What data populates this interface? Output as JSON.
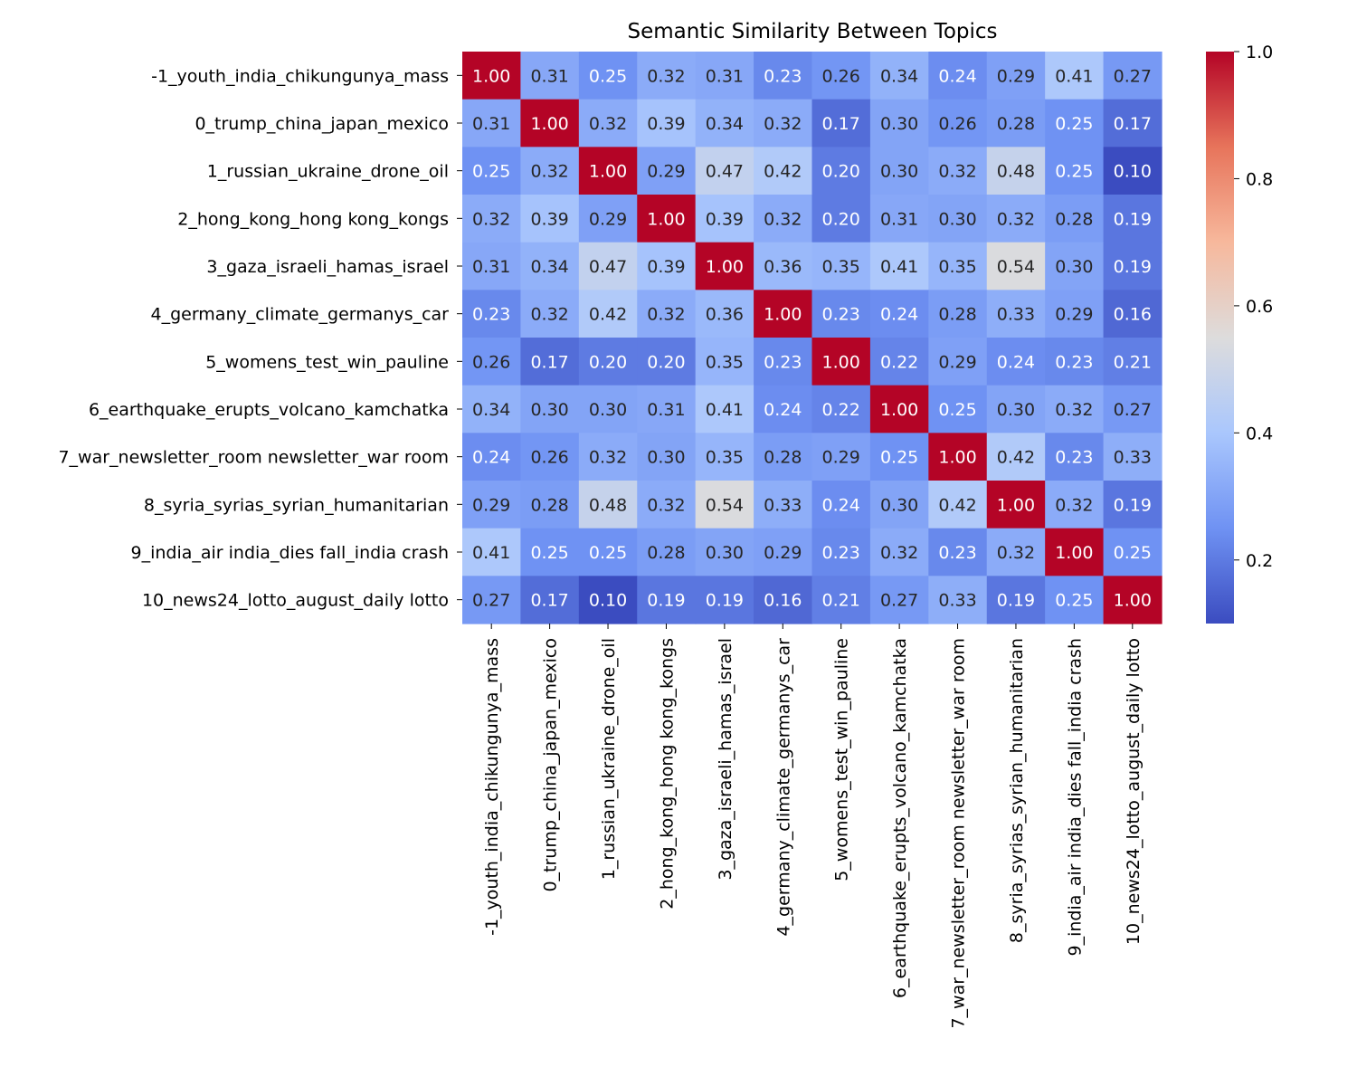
{
  "chart_data": {
    "type": "heatmap",
    "title": "Semantic Similarity Between Topics",
    "xlabel": "",
    "ylabel": "",
    "labels": [
      "-1_youth_india_chikungunya_mass",
      "0_trump_china_japan_mexico",
      "1_russian_ukraine_drone_oil",
      "2_hong_kong_hong kong_kongs",
      "3_gaza_israeli_hamas_israel",
      "4_germany_climate_germanys_car",
      "5_womens_test_win_pauline",
      "6_earthquake_erupts_volcano_kamchatka",
      "7_war_newsletter_room newsletter_war room",
      "8_syria_syrias_syrian_humanitarian",
      "9_india_air india_dies fall_india crash",
      "10_news24_lotto_august_daily lotto"
    ],
    "values": [
      [
        1.0,
        0.31,
        0.25,
        0.32,
        0.31,
        0.23,
        0.26,
        0.34,
        0.24,
        0.29,
        0.41,
        0.27
      ],
      [
        0.31,
        1.0,
        0.32,
        0.39,
        0.34,
        0.32,
        0.17,
        0.3,
        0.26,
        0.28,
        0.25,
        0.17
      ],
      [
        0.25,
        0.32,
        1.0,
        0.29,
        0.47,
        0.42,
        0.2,
        0.3,
        0.32,
        0.48,
        0.25,
        0.1
      ],
      [
        0.32,
        0.39,
        0.29,
        1.0,
        0.39,
        0.32,
        0.2,
        0.31,
        0.3,
        0.32,
        0.28,
        0.19
      ],
      [
        0.31,
        0.34,
        0.47,
        0.39,
        1.0,
        0.36,
        0.35,
        0.41,
        0.35,
        0.54,
        0.3,
        0.19
      ],
      [
        0.23,
        0.32,
        0.42,
        0.32,
        0.36,
        1.0,
        0.23,
        0.24,
        0.28,
        0.33,
        0.29,
        0.16
      ],
      [
        0.26,
        0.17,
        0.2,
        0.2,
        0.35,
        0.23,
        1.0,
        0.22,
        0.29,
        0.24,
        0.23,
        0.21
      ],
      [
        0.34,
        0.3,
        0.3,
        0.31,
        0.41,
        0.24,
        0.22,
        1.0,
        0.25,
        0.3,
        0.32,
        0.27
      ],
      [
        0.24,
        0.26,
        0.32,
        0.3,
        0.35,
        0.28,
        0.29,
        0.25,
        1.0,
        0.42,
        0.23,
        0.33
      ],
      [
        0.29,
        0.28,
        0.48,
        0.32,
        0.54,
        0.33,
        0.24,
        0.3,
        0.42,
        1.0,
        0.32,
        0.19
      ],
      [
        0.41,
        0.25,
        0.25,
        0.28,
        0.3,
        0.29,
        0.23,
        0.32,
        0.23,
        0.32,
        1.0,
        0.25
      ],
      [
        0.27,
        0.17,
        0.1,
        0.19,
        0.19,
        0.16,
        0.21,
        0.27,
        0.33,
        0.19,
        0.25,
        1.0
      ]
    ],
    "value_format": "0.00",
    "colormap": "coolwarm",
    "colormap_stops": [
      "#3b4cc0",
      "#6f92f3",
      "#aac7fd",
      "#dddcdc",
      "#f7b89c",
      "#e7745b",
      "#b40426"
    ],
    "color_range": [
      0.1,
      1.0
    ],
    "colorbar_ticks": [
      0.2,
      0.4,
      0.6,
      0.8,
      1.0
    ],
    "colorbar_tick_labels": [
      "0.2",
      "0.4",
      "0.6",
      "0.8",
      "1.0"
    ],
    "grid": false
  }
}
